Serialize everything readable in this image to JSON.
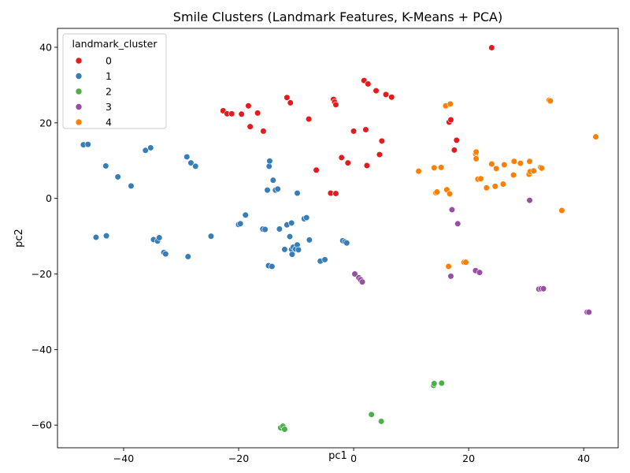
{
  "chart_data": {
    "type": "scatter",
    "title": "Smile Clusters (Landmark Features, K-Means + PCA)",
    "xlabel": "pc1",
    "ylabel": "pc2",
    "xlim": [
      -51.5,
      46
    ],
    "ylim": [
      -66,
      45
    ],
    "xticks": [
      -40,
      -20,
      0,
      20,
      40
    ],
    "yticks": [
      -60,
      -40,
      -20,
      0,
      20,
      40
    ],
    "tick_labels": {
      "x": [
        "−40",
        "−20",
        "0",
        "20",
        "40"
      ],
      "y": [
        "−60",
        "−40",
        "−20",
        "0",
        "20",
        "40"
      ]
    },
    "grid": false,
    "legend": {
      "title": "landmark_cluster",
      "placement": "top-left"
    },
    "series": [
      {
        "name": "0",
        "color": "#e41a1c",
        "points": [
          [
            -22.7,
            23.2
          ],
          [
            -22.0,
            22.4
          ],
          [
            -21.2,
            22.4
          ],
          [
            -19.5,
            22.3
          ],
          [
            -18.3,
            24.5
          ],
          [
            -18.0,
            19.0
          ],
          [
            -16.7,
            22.6
          ],
          [
            -15.7,
            17.8
          ],
          [
            -11.6,
            26.7
          ],
          [
            -11.0,
            25.3
          ],
          [
            -7.8,
            21.0
          ],
          [
            -6.5,
            7.5
          ],
          [
            -4.0,
            1.4
          ],
          [
            -3.5,
            26.2
          ],
          [
            -3.3,
            25.5
          ],
          [
            -3.1,
            24.8
          ],
          [
            -3.1,
            1.3
          ],
          [
            -2.1,
            10.8
          ],
          [
            -1.0,
            9.4
          ],
          [
            0.0,
            17.8
          ],
          [
            1.8,
            31.2
          ],
          [
            2.1,
            18.2
          ],
          [
            2.3,
            8.7
          ],
          [
            2.5,
            30.3
          ],
          [
            3.9,
            28.5
          ],
          [
            4.5,
            11.6
          ],
          [
            4.9,
            15.2
          ],
          [
            5.6,
            27.5
          ],
          [
            6.6,
            26.8
          ],
          [
            16.6,
            20.2
          ],
          [
            16.9,
            20.8
          ],
          [
            17.5,
            12.8
          ],
          [
            17.9,
            15.4
          ],
          [
            24.0,
            39.9
          ]
        ]
      },
      {
        "name": "1",
        "color": "#377eb8",
        "points": [
          [
            -47.0,
            14.2
          ],
          [
            -46.2,
            14.3
          ],
          [
            -44.8,
            -10.3
          ],
          [
            -43.1,
            8.6
          ],
          [
            -43.0,
            -9.9
          ],
          [
            -41.0,
            5.7
          ],
          [
            -38.7,
            3.3
          ],
          [
            -36.2,
            12.7
          ],
          [
            -35.3,
            13.4
          ],
          [
            -34.8,
            -10.9
          ],
          [
            -34.1,
            -11.3
          ],
          [
            -33.8,
            -10.4
          ],
          [
            -33.0,
            -14.3
          ],
          [
            -32.7,
            -14.7
          ],
          [
            -29.0,
            11.0
          ],
          [
            -28.8,
            -15.4
          ],
          [
            -28.3,
            9.4
          ],
          [
            -27.5,
            8.5
          ],
          [
            -24.8,
            -10.0
          ],
          [
            -20.0,
            -6.9
          ],
          [
            -19.7,
            -6.7
          ],
          [
            -18.8,
            -4.4
          ],
          [
            -15.8,
            -8.1
          ],
          [
            -15.4,
            -8.2
          ],
          [
            -15.0,
            2.2
          ],
          [
            -14.8,
            -17.8
          ],
          [
            -14.7,
            8.5
          ],
          [
            -14.6,
            9.9
          ],
          [
            -14.2,
            -18.0
          ],
          [
            -14.0,
            4.8
          ],
          [
            -13.6,
            2.2
          ],
          [
            -13.2,
            2.5
          ],
          [
            -12.9,
            -8.1
          ],
          [
            -12.0,
            -13.5
          ],
          [
            -11.6,
            -7.0
          ],
          [
            -11.1,
            -10.1
          ],
          [
            -10.8,
            -6.5
          ],
          [
            -10.8,
            -13.5
          ],
          [
            -10.7,
            -14.8
          ],
          [
            -10.5,
            -12.9
          ],
          [
            -10.1,
            -13.4
          ],
          [
            -9.8,
            -12.3
          ],
          [
            -9.8,
            1.4
          ],
          [
            -9.6,
            -13.6
          ],
          [
            -8.6,
            -5.4
          ],
          [
            -8.2,
            -5.1
          ],
          [
            -7.7,
            -11.0
          ],
          [
            -5.8,
            -16.6
          ],
          [
            -5.0,
            -16.2
          ],
          [
            -1.9,
            -11.2
          ],
          [
            -1.5,
            -11.5
          ],
          [
            -1.2,
            -11.8
          ]
        ]
      },
      {
        "name": "2",
        "color": "#4daf4a",
        "points": [
          [
            -12.7,
            -60.7
          ],
          [
            -12.3,
            -60.3
          ],
          [
            -12.0,
            -61.1
          ],
          [
            3.1,
            -57.2
          ],
          [
            4.8,
            -59.0
          ],
          [
            13.9,
            -49.5
          ],
          [
            14.0,
            -49.0
          ],
          [
            15.3,
            -48.9
          ]
        ]
      },
      {
        "name": "3",
        "color": "#984ea3",
        "points": [
          [
            0.2,
            -20.0
          ],
          [
            0.9,
            -21.0
          ],
          [
            1.2,
            -21.5
          ],
          [
            1.5,
            -22.1
          ],
          [
            16.9,
            -20.6
          ],
          [
            17.1,
            -3.0
          ],
          [
            18.1,
            -6.7
          ],
          [
            21.2,
            -19.1
          ],
          [
            21.9,
            -19.6
          ],
          [
            30.6,
            -0.5
          ],
          [
            32.2,
            -24.0
          ],
          [
            32.6,
            -23.9
          ],
          [
            33.0,
            -23.9
          ],
          [
            40.6,
            -30.1
          ],
          [
            40.9,
            -30.1
          ]
        ]
      },
      {
        "name": "4",
        "color": "#ff7f00",
        "points": [
          [
            11.3,
            7.2
          ],
          [
            14.0,
            8.1
          ],
          [
            14.3,
            1.5
          ],
          [
            14.5,
            1.7
          ],
          [
            15.2,
            8.2
          ],
          [
            16.0,
            24.5
          ],
          [
            16.2,
            2.3
          ],
          [
            16.5,
            -18.0
          ],
          [
            16.7,
            1.2
          ],
          [
            16.8,
            25.0
          ],
          [
            19.2,
            -16.9
          ],
          [
            19.5,
            -16.9
          ],
          [
            21.2,
            11.8
          ],
          [
            21.3,
            10.5
          ],
          [
            21.3,
            12.3
          ],
          [
            21.6,
            5.1
          ],
          [
            22.1,
            5.2
          ],
          [
            23.1,
            2.8
          ],
          [
            24.0,
            9.1
          ],
          [
            24.6,
            3.2
          ],
          [
            24.8,
            7.9
          ],
          [
            26.0,
            3.8
          ],
          [
            26.2,
            8.9
          ],
          [
            27.8,
            6.2
          ],
          [
            27.9,
            9.8
          ],
          [
            29.0,
            9.3
          ],
          [
            30.5,
            6.4
          ],
          [
            30.6,
            9.8
          ],
          [
            30.7,
            7.1
          ],
          [
            31.3,
            7.3
          ],
          [
            32.5,
            8.2
          ],
          [
            32.7,
            8.0
          ],
          [
            34.0,
            26.0
          ],
          [
            34.2,
            25.8
          ],
          [
            36.2,
            -3.2
          ],
          [
            42.1,
            16.3
          ]
        ]
      }
    ]
  }
}
